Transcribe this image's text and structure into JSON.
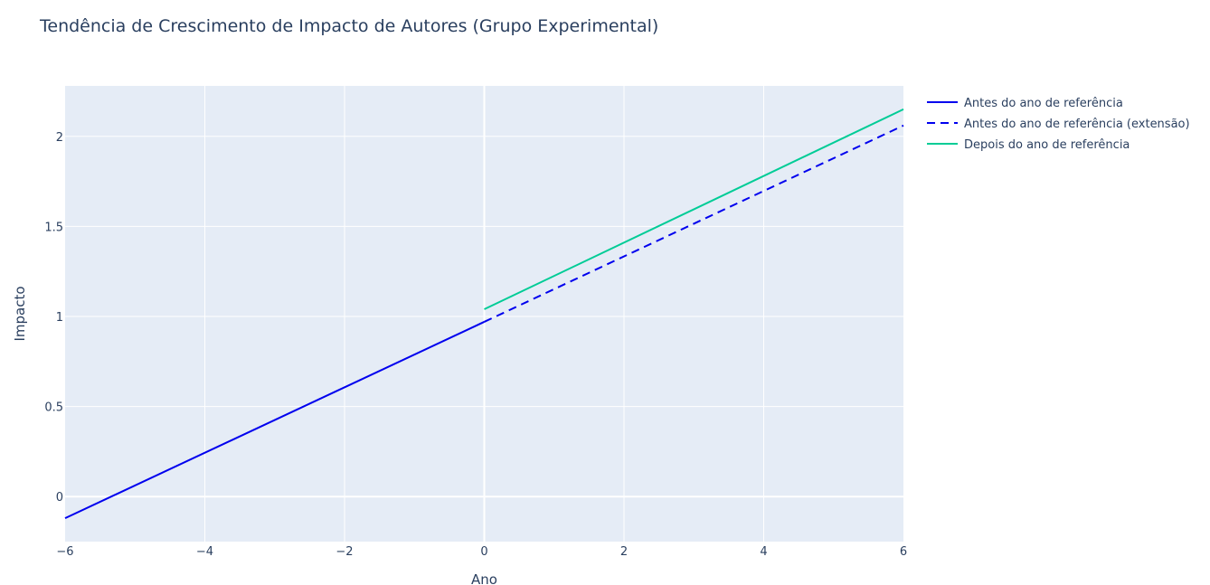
{
  "chart_data": {
    "type": "line",
    "title": "Tendência de Crescimento de Impacto de Autores (Grupo Experimental)",
    "xlabel": "Ano",
    "ylabel": "Impacto",
    "xlim": [
      -6,
      6
    ],
    "ylim": [
      -0.25,
      2.28
    ],
    "x_ticks": [
      {
        "value": -6,
        "label": "−6"
      },
      {
        "value": -4,
        "label": "−4"
      },
      {
        "value": -2,
        "label": "−2"
      },
      {
        "value": 0,
        "label": "0"
      },
      {
        "value": 2,
        "label": "2"
      },
      {
        "value": 4,
        "label": "4"
      },
      {
        "value": 6,
        "label": "6"
      }
    ],
    "y_ticks": [
      {
        "value": 0,
        "label": "0"
      },
      {
        "value": 0.5,
        "label": "0.5"
      },
      {
        "value": 1,
        "label": "1"
      },
      {
        "value": 1.5,
        "label": "1.5"
      },
      {
        "value": 2,
        "label": "2"
      }
    ],
    "grid": true,
    "legend_position": "top-right outside",
    "background_color": "#e5ecf6",
    "series": [
      {
        "name": "Antes do ano de referência",
        "color": "#0000ee",
        "dash": "solid",
        "x": [
          -6,
          0
        ],
        "y": [
          -0.12,
          0.97
        ]
      },
      {
        "name": "Antes do ano de referência (extensão)",
        "color": "#0000ee",
        "dash": "dash",
        "x": [
          0,
          6
        ],
        "y": [
          0.97,
          2.06
        ]
      },
      {
        "name": "Depois do ano de referência",
        "color": "#00cc96",
        "dash": "solid",
        "x": [
          0,
          6
        ],
        "y": [
          1.04,
          2.15
        ]
      }
    ]
  }
}
